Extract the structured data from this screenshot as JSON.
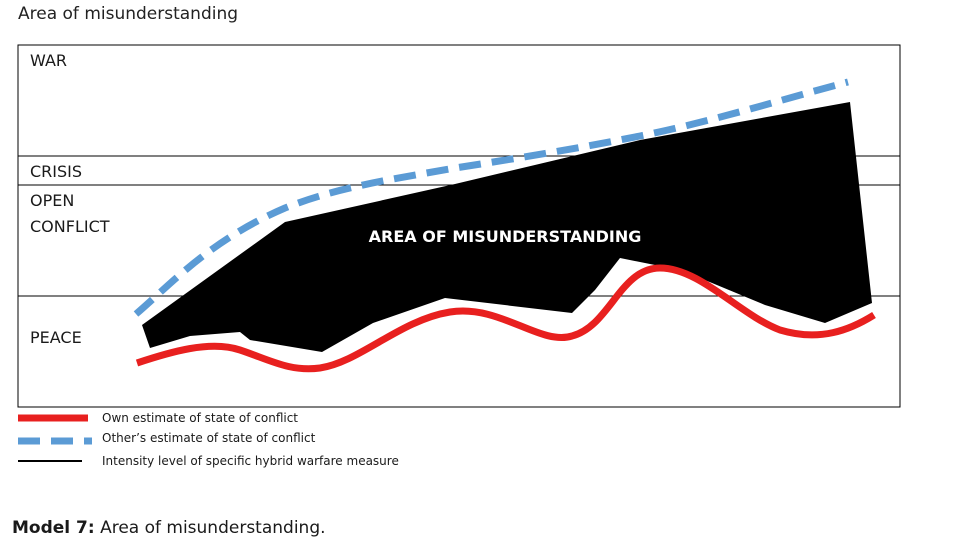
{
  "title": "Area of misunderstanding",
  "levels": {
    "war": "WAR",
    "crisis": "CRISIS",
    "open_conflict_line1": "OPEN",
    "open_conflict_line2": "CONFLICT",
    "peace": "PEACE"
  },
  "area_label": "AREA OF MISUNDERSTANDING",
  "legend": {
    "own": "Own estimate of state of conflict",
    "other": "Other’s estimate of state of conflict",
    "intensity": "Intensity level of specific hybrid warfare measure"
  },
  "caption": {
    "prefix": "Model 7:",
    "text": " Area of misunderstanding."
  },
  "colors": {
    "own_line": "#e8201f",
    "other_line": "#5b9bd5",
    "area_fill": "#000000",
    "frame": "#000000"
  }
}
